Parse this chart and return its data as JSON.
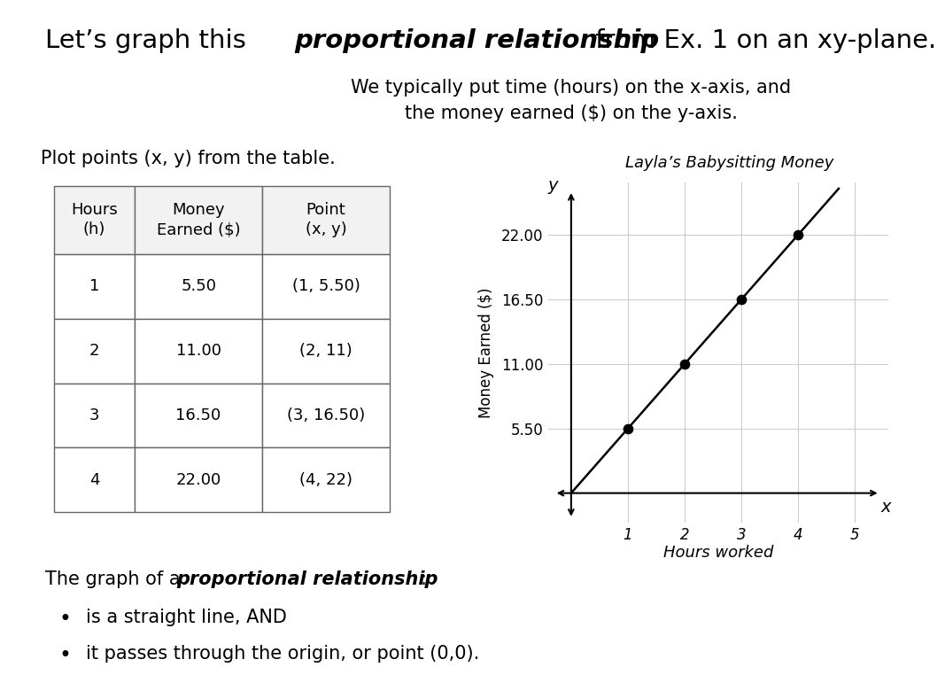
{
  "subtitle": "We typically put time (hours) on the x-axis, and\nthe money earned ($) on the y-axis.",
  "table_headers": [
    "Hours\n(h)",
    "Money\nEarned ($)",
    "Point\n(x, y)"
  ],
  "table_data": [
    [
      "1",
      "5.50",
      "(1, 5.50)"
    ],
    [
      "2",
      "11.00",
      "(2, 11)"
    ],
    [
      "3",
      "16.50",
      "(3, 16.50)"
    ],
    [
      "4",
      "22.00",
      "(4, 22)"
    ]
  ],
  "plot_title": "Layla’s Babysitting Money",
  "plot_xlabel": "Hours worked",
  "plot_ylabel": "Money Earned ($)",
  "x_label_axis": "x",
  "y_label_axis": "y",
  "x_data": [
    1,
    2,
    3,
    4
  ],
  "y_data": [
    5.5,
    11.0,
    16.5,
    22.0
  ],
  "ytick_vals": [
    5.5,
    11.0,
    16.5,
    22.0
  ],
  "ytick_labels": [
    "5.50",
    "11.00",
    "16.50",
    "22.00"
  ],
  "xtick_vals": [
    1,
    2,
    3,
    4,
    5
  ],
  "xtick_labels": [
    "1",
    "2",
    "3",
    "4",
    "5"
  ],
  "xlim": [
    -0.4,
    5.6
  ],
  "ylim": [
    -2.5,
    26.5
  ],
  "left_text": "Plot points (x, y) from the table.",
  "bottom_line1_normal": "The graph of a ",
  "bottom_line1_bold": "proportional relationship",
  "bottom_line1_end": ":",
  "bottom_bullet1": "is a straight line, AND",
  "bottom_bullet2": "it passes through the origin, or point (0,0).",
  "title_part1": "Let’s graph this ",
  "title_part2": "proportional relationship",
  "title_part3": " from Ex. 1 on an xy-plane.",
  "bg_color": "#ffffff",
  "text_color": "#000000",
  "grid_color": "#cccccc",
  "border_color": "#666666",
  "title_fontsize": 21,
  "subtitle_fontsize": 15,
  "body_fontsize": 15,
  "table_fontsize": 13,
  "graph_tick_fontsize": 12,
  "plot_title_fontsize": 13
}
